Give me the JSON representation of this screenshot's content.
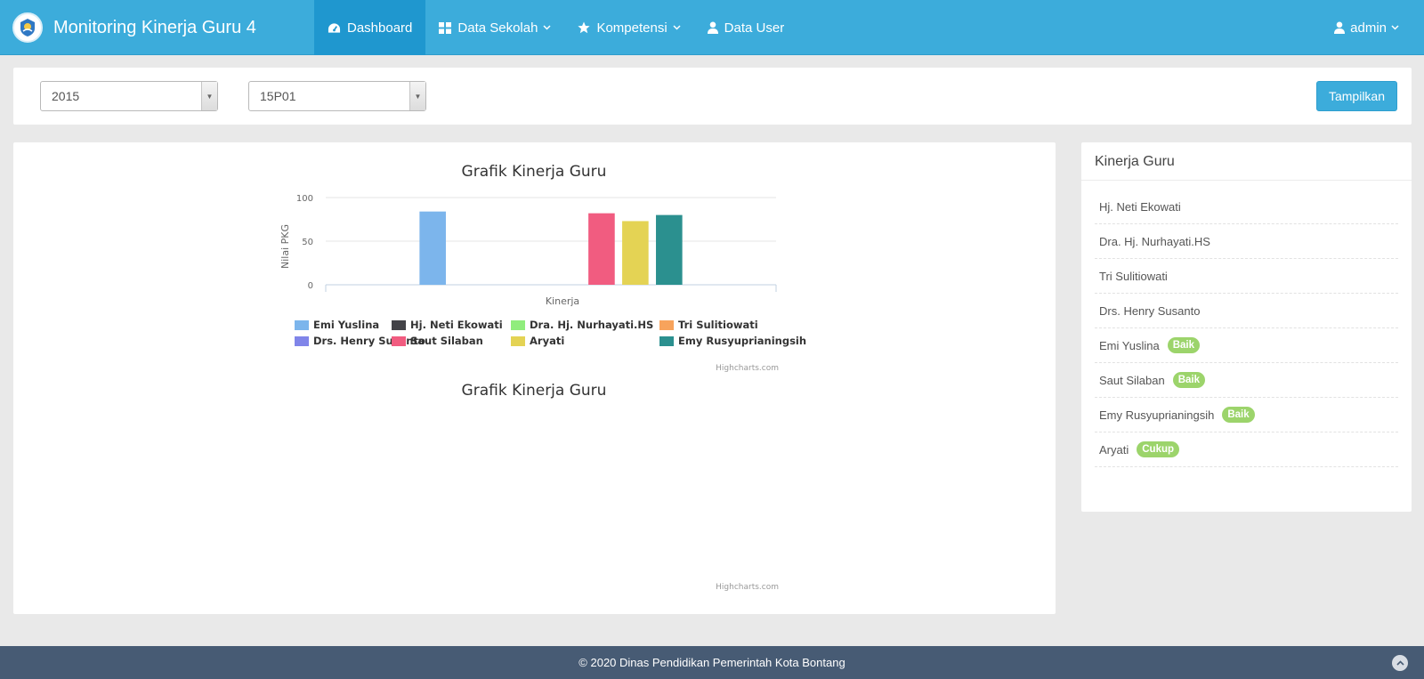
{
  "app": {
    "title": "Monitoring Kinerja Guru 4",
    "logo_icon": "tut-wuri-handayani-logo"
  },
  "nav": {
    "items": [
      {
        "label": "Dashboard",
        "icon": "dashboard-icon",
        "active": true
      },
      {
        "label": "Data Sekolah",
        "icon": "grid-icon",
        "dropdown": true
      },
      {
        "label": "Kompetensi",
        "icon": "star-icon",
        "dropdown": true
      },
      {
        "label": "Data User",
        "icon": "user-icon"
      }
    ],
    "user": {
      "label": "admin",
      "icon": "user-icon"
    }
  },
  "filters": {
    "year": "2015",
    "period": "15P01",
    "submit_label": "Tampilkan"
  },
  "chart_data": [
    {
      "type": "bar",
      "title": "Grafik Kinerja Guru",
      "xlabel": "Kinerja",
      "ylabel": "Nilai PKG",
      "categories": [
        "Kinerja"
      ],
      "ylim": [
        0,
        100
      ],
      "yticks": [
        "0",
        "50",
        "100"
      ],
      "grid": true,
      "legend_position": "bottom",
      "credits": "Highcharts.com",
      "series": [
        {
          "name": "Emi Yuslina",
          "color": "#7cb5ec",
          "value": 84
        },
        {
          "name": "Hj. Neti Ekowati",
          "color": "#434348",
          "value": 0
        },
        {
          "name": "Dra. Hj. Nurhayati.HS",
          "color": "#90ed7d",
          "value": 0
        },
        {
          "name": "Tri Sulitiowati",
          "color": "#f7a35c",
          "value": 0
        },
        {
          "name": "Drs. Henry Susanto",
          "color": "#8085e9",
          "value": 0
        },
        {
          "name": "Saut Silaban",
          "color": "#f15c80",
          "value": 82
        },
        {
          "name": "Aryati",
          "color": "#e4d354",
          "value": 73
        },
        {
          "name": "Emy Rusyuprianingsih",
          "color": "#2b908f",
          "value": 80
        }
      ]
    },
    {
      "type": "bar",
      "title": "Grafik Kinerja Guru",
      "credits": "Highcharts.com",
      "series": []
    }
  ],
  "side": {
    "title": "Kinerja Guru",
    "items": [
      {
        "name": "Hj. Neti Ekowati",
        "badge": ""
      },
      {
        "name": "Dra. Hj. Nurhayati.HS",
        "badge": ""
      },
      {
        "name": "Tri Sulitiowati",
        "badge": ""
      },
      {
        "name": "Drs. Henry Susanto",
        "badge": ""
      },
      {
        "name": "Emi Yuslina",
        "badge": "Baik"
      },
      {
        "name": "Saut Silaban",
        "badge": "Baik"
      },
      {
        "name": "Emy Rusyuprianingsih",
        "badge": "Baik"
      },
      {
        "name": "Aryati",
        "badge": "Cukup"
      }
    ]
  },
  "footer": {
    "text": "© 2020 Dinas Pendidikan Pemerintah Kota Bontang",
    "scroll_icon": "chevron-up-icon"
  }
}
